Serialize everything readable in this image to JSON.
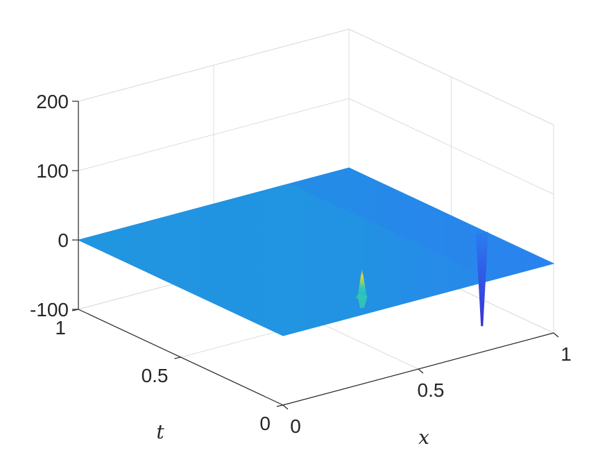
{
  "chart_data": {
    "type": "surface",
    "title": "",
    "xlabel": "x",
    "ylabel": "t",
    "zlabel": "",
    "xlim": [
      0,
      1
    ],
    "ylim": [
      0,
      1
    ],
    "zlim": [
      -100,
      200
    ],
    "x_ticks": [
      "0",
      "0.5",
      "1"
    ],
    "y_ticks": [
      "0",
      "0.5",
      "1"
    ],
    "z_ticks": [
      "-100",
      "0",
      "100",
      "200"
    ],
    "x_tick_values": [
      0,
      0.5,
      1
    ],
    "y_tick_values": [
      0,
      0.5,
      1
    ],
    "z_tick_values": [
      -100,
      0,
      100,
      200
    ],
    "grid": true,
    "surface_level": 0,
    "features": [
      {
        "kind": "spike",
        "x": 0.36,
        "t": 0.09,
        "z_peak": 47,
        "z_min": -10
      },
      {
        "kind": "dip",
        "x": 0.97,
        "t": 0.31,
        "z_min": -130
      }
    ],
    "colors": {
      "surface_main": "#2196e0",
      "surface_dark": "#2b7ef0",
      "spike_top": "#e8d830",
      "spike_mid": "#35c8b0",
      "dip": "#3a30d8"
    }
  }
}
